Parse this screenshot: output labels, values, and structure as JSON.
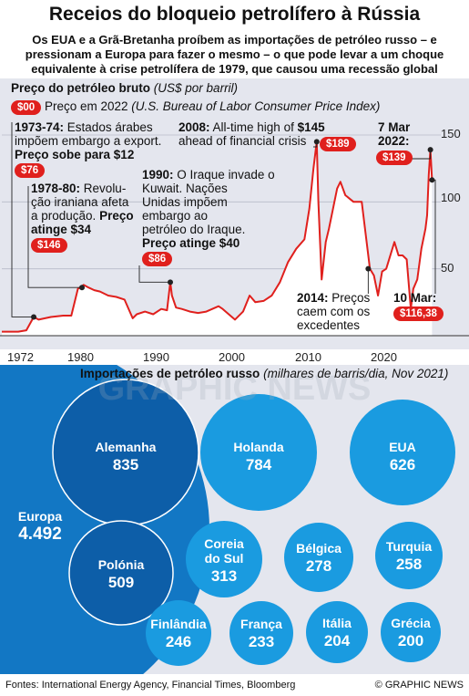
{
  "header": {
    "title": "Receios do bloqueio petrolífero à Rússia",
    "subtitle": "Os EUA e a Grã-Bretanha proíbem as importações de petróleo russo – e pressionam a Europa para fazer o mesmo – o que pode levar a um choque equivalente à crise petrolífera de 1979, que causou uma recessão global"
  },
  "colors": {
    "price_line": "#e0201d",
    "area_fill": "#ffffff",
    "panel_bg": "#e4e6ee",
    "bubble_light": "#1a9be0",
    "bubble_europe": "#1277c4",
    "bubble_dark": "#0d5ea8"
  },
  "oil_chart": {
    "title": "Preço do petróleo bruto",
    "unit": "(US$ por barril)",
    "legend_pill": "$00",
    "legend_text": "Preço em 2022",
    "legend_source": "(U.S. Bureau of Labor Consumer Price Index)",
    "annotations": {
      "a1973_line1": "1973-74:",
      "a1973_line1b": " Estados árabes",
      "a1973_line2": "impõem embargo a export.",
      "a1973_line3": "Preço sobe para $12",
      "a1973_pill": "$76",
      "a1978_line1": "1978-80:",
      "a1978_line1b": " Revolu-",
      "a1978_line2": "ção iraniana afeta",
      "a1978_line3": "a produção.",
      "a1978_line3b": " Preço",
      "a1978_line4": "atinge $34",
      "a1978_pill": "$146",
      "a1990_line1": "1990:",
      "a1990_line1b": " O Iraque invade o",
      "a1990_line2": "Kuwait. Nações",
      "a1990_line3": "Unidas impõem",
      "a1990_line4": "embargo ao",
      "a1990_line5": "petróleo do Iraque.",
      "a1990_line6": "Preço atinge $40",
      "a1990_pill": "$86",
      "a2008_line1": "2008:",
      "a2008_line1b": " All-time high of ",
      "a2008_line1c": "$145",
      "a2008_line2": "ahead of financial crisis",
      "a2008_pill": "$189",
      "a2014_line1": "2014:",
      "a2014_line1b": " Preços",
      "a2014_line2": "caem com os",
      "a2014_line3": "excedentes",
      "mar7_line1": "7 Mar",
      "mar7_line2": "2022:",
      "mar7_pill": "$139",
      "mar10_line1": "10 Mar:",
      "mar10_pill": "$116,38"
    }
  },
  "chart_data": [
    {
      "type": "area",
      "title": "Preço do petróleo bruto",
      "ylabel": "(US$ por barril)",
      "x_ticks": [
        "1972",
        "1980",
        "1990",
        "2000",
        "2010",
        "2020"
      ],
      "y_ticks": [
        "50",
        "100",
        "150"
      ],
      "xlim": [
        1970,
        2023
      ],
      "ylim": [
        0,
        150
      ],
      "series": [
        {
          "x": [
            1970,
            1972,
            1973.0,
            1973.9,
            1974.5,
            1976,
            1977.5,
            1978.5,
            1979.3,
            1980.0,
            1980.6,
            1981.3,
            1982,
            1983,
            1984,
            1985,
            1986.0,
            1986.5,
            1987.5,
            1988.5,
            1989.5,
            1990.2,
            1990.6,
            1990.8,
            1991.3,
            1992,
            1993,
            1994,
            1995,
            1996.5,
            1997,
            1998.5,
            1999.5,
            2000.3,
            2001,
            2002,
            2003,
            2004,
            2005,
            2006,
            2007,
            2007.6,
            2008.1,
            2008.5,
            2008.7,
            2009.1,
            2009.6,
            2010,
            2011,
            2011.4,
            2012,
            2013,
            2014.0,
            2014.5,
            2015.0,
            2015.5,
            2016.0,
            2016.5,
            2017,
            2018,
            2018.5,
            2019,
            2019.5,
            2020.0,
            2020.3,
            2020.8,
            2021.3,
            2021.8,
            2022.0,
            2022.2,
            2022.4,
            2022.6
          ],
          "values": [
            3,
            3,
            4,
            14,
            12,
            14,
            15,
            15,
            35,
            38,
            36,
            34,
            33,
            30,
            29,
            27,
            13,
            16,
            18,
            16,
            20,
            19,
            40,
            30,
            21,
            20,
            18,
            17,
            18,
            22,
            20,
            12,
            18,
            30,
            25,
            26,
            30,
            40,
            55,
            65,
            72,
            95,
            125,
            145,
            100,
            42,
            70,
            80,
            110,
            115,
            105,
            100,
            100,
            75,
            50,
            45,
            30,
            48,
            50,
            70,
            60,
            60,
            57,
            20,
            35,
            42,
            65,
            80,
            90,
            120,
            139,
            116.38
          ]
        }
      ],
      "annotations": [
        "1973-74: Estados árabes impõem embargo a export. Preço sobe para $12",
        "1978-80: Revolução iraniana afeta a produção. Preço atinge $34",
        "1990: O Iraque invade o Kuwait. Nações Unidas impõem embargo ao petróleo do Iraque. Preço atinge $40",
        "2008: All-time high of $145 ahead of financial crisis",
        "2014: Preços caem com os excedentes",
        "7 Mar 2022: $139",
        "10 Mar: $116,38"
      ]
    },
    {
      "type": "bubble",
      "title": "Importações de petróleo russo",
      "unit": "(milhares de barris/dia, Nov 2021)",
      "categories": [
        "Europa",
        "Alemanha",
        "Polónia",
        "Holanda",
        "EUA",
        "Coreia do Sul",
        "Bélgica",
        "Turquia",
        "Finlândia",
        "França",
        "Itália",
        "Grécia"
      ],
      "values": [
        4492,
        835,
        509,
        784,
        626,
        313,
        278,
        258,
        246,
        233,
        204,
        200
      ],
      "display_values": [
        "4.492",
        "835",
        "509",
        "784",
        "626",
        "313",
        "278",
        "258",
        "246",
        "233",
        "204",
        "200"
      ]
    }
  ],
  "imports": {
    "title": "Importações de petróleo russo",
    "unit": "(milhares de barris/dia, Nov 2021)",
    "bubbles": [
      {
        "label": "Europa",
        "value": "4.492"
      },
      {
        "label": "Alemanha",
        "value": "835"
      },
      {
        "label": "Polónia",
        "value": "509"
      },
      {
        "label": "Holanda",
        "value": "784"
      },
      {
        "label": "EUA",
        "value": "626"
      },
      {
        "label": "Coreia do Sul",
        "value": "313"
      },
      {
        "label": "Bélgica",
        "value": "278"
      },
      {
        "label": "Turquia",
        "value": "258"
      },
      {
        "label": "Finlândia",
        "value": "246"
      },
      {
        "label": "França",
        "value": "233"
      },
      {
        "label": "Itália",
        "value": "204"
      },
      {
        "label": "Grécia",
        "value": "200"
      }
    ]
  },
  "watermark": "GRAPHIC NEWS",
  "footer": {
    "sources": "Fontes: International Energy Agency, Financial Times, Bloomberg",
    "credit": "© GRAPHIC NEWS"
  }
}
